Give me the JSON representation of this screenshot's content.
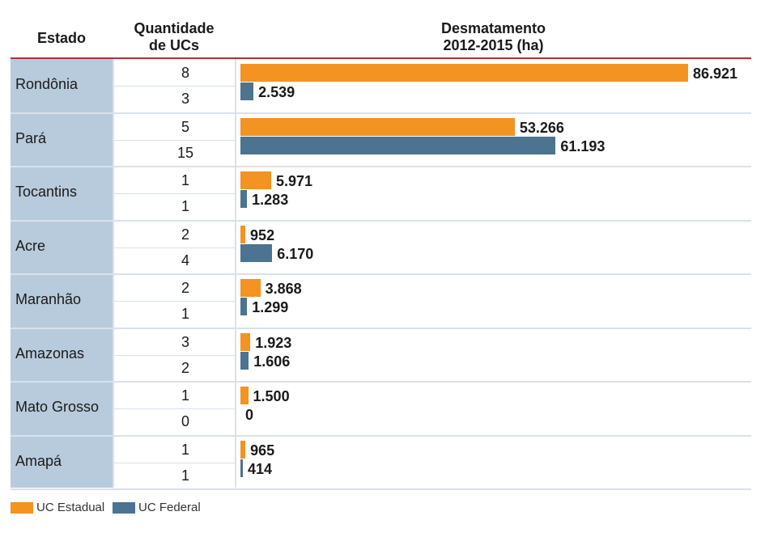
{
  "headers": {
    "estado": "Estado",
    "qty_line1": "Quantidade",
    "qty_line2": "de UCs",
    "defor_line1": "Desmatamento",
    "defor_line2": "2012-2015 (ha)"
  },
  "legend": [
    {
      "label": "UC Estadual",
      "color": "#f39322"
    },
    {
      "label": "UC Federal",
      "color": "#4c7390"
    }
  ],
  "chart_data": {
    "type": "bar",
    "orientation": "horizontal",
    "title": "Desmatamento 2012-2015 (ha)",
    "xlim": [
      0,
      86921
    ],
    "grid": false,
    "legend_position": "bottom-left",
    "categories": [
      "Rondônia",
      "Pará",
      "Tocantins",
      "Acre",
      "Maranhão",
      "Amazonas",
      "Mato Grosso",
      "Amapá"
    ],
    "series": [
      {
        "name": "UC Estadual",
        "color": "#f39322",
        "count_ucs": [
          8,
          5,
          1,
          2,
          2,
          3,
          1,
          1
        ],
        "values": [
          86921,
          53266,
          5971,
          952,
          3868,
          1923,
          1500,
          965
        ],
        "labels": [
          "86.921",
          "53.266",
          "5.971",
          "952",
          "3.868",
          "1.923",
          "1.500",
          "965"
        ]
      },
      {
        "name": "UC Federal",
        "color": "#4c7390",
        "count_ucs": [
          3,
          15,
          1,
          4,
          1,
          2,
          0,
          1
        ],
        "values": [
          2539,
          61193,
          1283,
          6170,
          1299,
          1606,
          0,
          414
        ],
        "labels": [
          "2.539",
          "61.193",
          "1.283",
          "6.170",
          "1.299",
          "1.606",
          "0",
          "414"
        ]
      }
    ]
  }
}
